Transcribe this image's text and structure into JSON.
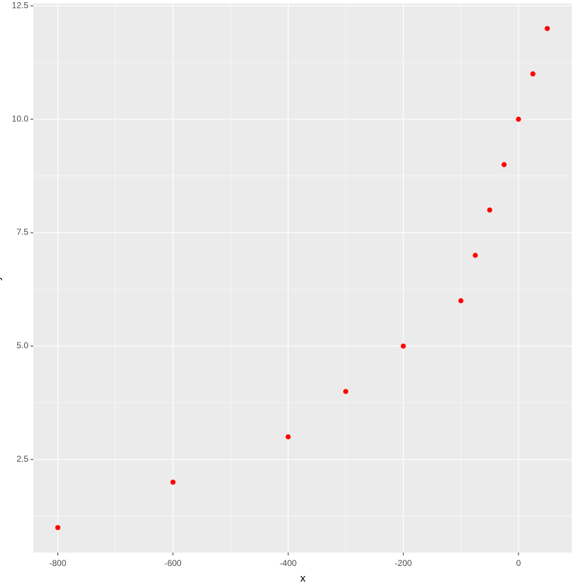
{
  "chart_data": {
    "type": "scatter",
    "x_label": "x",
    "y_label": "y",
    "x": [
      -800,
      -600,
      -400,
      -300,
      -200,
      -100,
      -75,
      -50,
      -25,
      0,
      25,
      50
    ],
    "values": [
      1,
      2,
      3,
      4,
      5,
      6,
      7,
      8,
      9,
      10,
      11,
      12
    ],
    "color": "#ff0000",
    "xlim": [
      -842.5,
      92.5
    ],
    "ylim": [
      0.45,
      12.55
    ],
    "xticks": [
      -800,
      -600,
      -400,
      -200,
      0
    ],
    "yticks": [
      {
        "value": 2.5,
        "label": "2.5"
      },
      {
        "value": 5,
        "label": "5.0"
      },
      {
        "value": 7.5,
        "label": "7.5"
      },
      {
        "value": 10,
        "label": "10.0"
      },
      {
        "value": 12.5,
        "label": "12.5"
      }
    ],
    "x_minor_ticks": [
      -700,
      -500,
      -300,
      -100
    ],
    "y_minor_ticks": [
      1.25,
      3.75,
      6.25,
      8.75,
      11.25
    ],
    "grid": true
  }
}
